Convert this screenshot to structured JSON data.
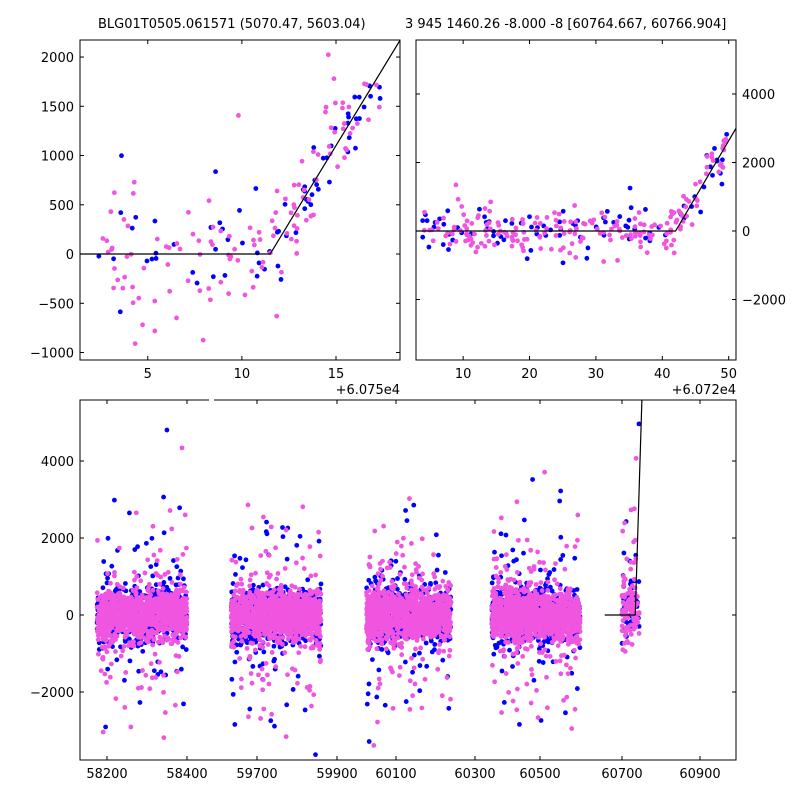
{
  "colors": {
    "blue": "#0000ff",
    "pink": "#f055e0",
    "model": "#000000"
  },
  "chart_data": [
    {
      "type": "scatter",
      "title": "BLG01T0505.061571 (5070.47, 5603.04)",
      "x_offset_label": "+6.075e4",
      "xlim": [
        1.4,
        18.4
      ],
      "ylim": [
        -1076,
        2173
      ],
      "xticks": [
        "5",
        "10",
        "15"
      ],
      "xtick_values": [
        5,
        10,
        15
      ],
      "yticks": [
        "−1000",
        "−500",
        "0",
        "500",
        "1000",
        "1500",
        "2000"
      ],
      "ytick_values": [
        -1000,
        -500,
        0,
        500,
        1000,
        1500,
        2000
      ],
      "model": [
        [
          1.4,
          0
        ],
        [
          11.5,
          0
        ],
        [
          18.4,
          2170
        ]
      ],
      "series": [
        {
          "name": "blue",
          "n": 70,
          "noise": 220
        },
        {
          "name": "pink",
          "n": 130,
          "noise": 300
        }
      ]
    },
    {
      "type": "scatter",
      "title": "3 945 1460.26 -8.000 -8 [60764.667, 60766.904]",
      "x_offset_label": "+6.072e4",
      "xlim": [
        2.9,
        51.1
      ],
      "ylim": [
        -3766,
        5577
      ],
      "xticks": [
        "10",
        "20",
        "30",
        "40",
        "50"
      ],
      "xtick_values": [
        10,
        20,
        30,
        40,
        50
      ],
      "yticks": [
        "−2000",
        "0",
        "2000",
        "4000"
      ],
      "ytick_values": [
        -2000,
        0,
        2000,
        4000
      ],
      "model": [
        [
          2.9,
          0
        ],
        [
          42,
          0
        ],
        [
          51.1,
          3000
        ]
      ],
      "series": [
        {
          "name": "blue",
          "n": 90,
          "noise": 280
        },
        {
          "name": "pink",
          "n": 200,
          "noise": 320
        }
      ]
    },
    {
      "type": "scatter",
      "title": "",
      "ylim": [
        -3766,
        5584
      ],
      "xticks": [
        "58200",
        "58400",
        "59700",
        "59900",
        "60100",
        "60300",
        "60500",
        "60700",
        "60900"
      ],
      "xtick_values": [
        58200,
        58400,
        59700,
        59900,
        60100,
        60300,
        60500,
        60700,
        60900
      ],
      "yticks": [
        "−2000",
        "0",
        "2000",
        "4000"
      ],
      "ytick_values": [
        -2000,
        0,
        2000,
        4000
      ],
      "model": [
        [
          60658,
          0
        ],
        [
          60734,
          0
        ],
        [
          60751,
          5584
        ]
      ],
      "clusters": [
        {
          "x": [
            58175,
            58400
          ],
          "n": 900
        },
        {
          "x": [
            59635,
            59860
          ],
          "n": 900
        },
        {
          "x": [
            60000,
            60239
          ],
          "n": 900
        },
        {
          "x": [
            60352,
            60598
          ],
          "n": 900
        },
        {
          "x": [
            60700,
            60744
          ],
          "n": 80
        }
      ]
    }
  ]
}
